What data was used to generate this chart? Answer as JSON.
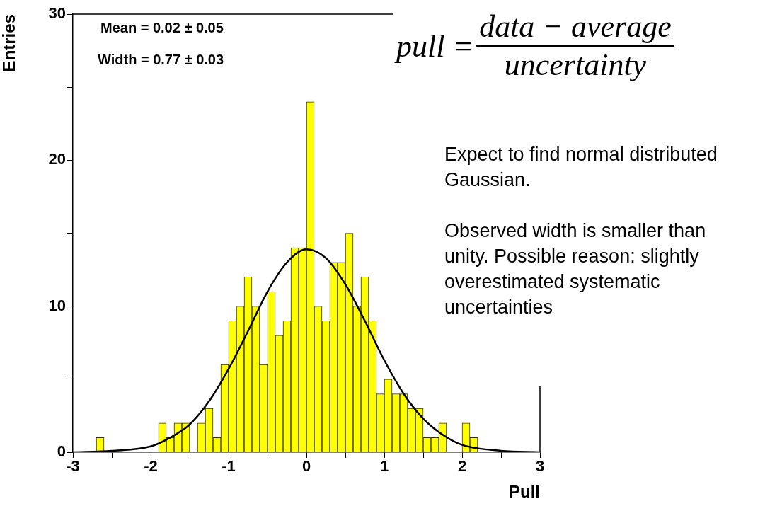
{
  "chart_data": {
    "type": "histogram",
    "xlabel": "Pull",
    "ylabel": "Entries",
    "xlim": [
      -3,
      3
    ],
    "xticks": [
      -3,
      {
        "value": -2.5,
        "label": null
      },
      -2,
      {
        "value": -1.5,
        "label": null
      },
      -1,
      {
        "value": -0.5,
        "label": null
      },
      0,
      {
        "value": 0.5,
        "label": null
      },
      1,
      {
        "value": 1.5,
        "label": null
      },
      2,
      {
        "value": 2.5,
        "label": null
      },
      3
    ],
    "ylim": [
      0,
      30
    ],
    "yticks": [
      0,
      {
        "value": 5,
        "label": null
      },
      10,
      {
        "value": 15,
        "label": null
      },
      20,
      {
        "value": 25,
        "label": null
      },
      30
    ],
    "legend": false,
    "annotations": [
      "Mean = 0.02 ± 0.05",
      "Width = 0.77 ± 0.03",
      "pull =",
      "data − average",
      "uncertainty",
      "Expect to find normal distributed Gaussian.",
      "Observed width is smaller than unity. Possible reason: slightly overestimated systematic uncertainties"
    ],
    "series": [
      {
        "type": "histogram",
        "color": "#ffff00",
        "bins": [
          -3.0,
          -2.9,
          -2.8,
          -2.7,
          -2.6,
          -2.5,
          -2.4,
          -2.3,
          -2.2,
          -2.1,
          -2.0,
          -1.9,
          -1.8,
          -1.7,
          -1.6,
          -1.5,
          -1.4,
          -1.3,
          -1.2,
          -1.1,
          -1.0,
          -0.9,
          -0.8,
          -0.7,
          -0.6,
          -0.5,
          -0.4,
          -0.3,
          -0.2,
          -0.1,
          0.0,
          0.1,
          0.2,
          0.3,
          0.4,
          0.5,
          0.6,
          0.7,
          0.8,
          0.9,
          1.0,
          1.1,
          1.2,
          1.3,
          1.4,
          1.5,
          1.6,
          1.7,
          1.8,
          1.9,
          2.0,
          2.1,
          2.2,
          2.3,
          2.4,
          2.5,
          2.6,
          2.7,
          2.8,
          2.9,
          3.0
        ],
        "values": [
          0,
          0,
          0,
          1,
          0,
          0,
          0,
          0,
          0,
          0,
          0,
          2,
          1,
          2,
          2,
          0,
          2,
          3,
          1,
          6,
          9,
          10,
          12,
          10,
          6,
          11,
          8,
          9,
          14,
          14,
          24,
          10,
          9,
          13,
          13,
          15,
          10,
          12,
          9,
          4,
          5,
          4,
          4,
          3,
          3,
          1,
          1,
          2,
          0,
          0,
          2,
          1,
          0,
          0,
          0,
          0,
          0,
          0,
          0,
          0
        ]
      },
      {
        "type": "line",
        "color": "#000000",
        "marker": "none",
        "x": [
          -3,
          -2.5,
          -2,
          -1.75,
          -1.5,
          -1.25,
          -1,
          -0.75,
          -0.5,
          -0.25,
          0,
          0.25,
          0.5,
          0.75,
          1,
          1.25,
          1.5,
          1.75,
          2,
          2.5,
          3
        ],
        "values": [
          0.0,
          0.1,
          0.4,
          1.0,
          1.9,
          3.5,
          5.7,
          8.3,
          11.0,
          13.0,
          13.9,
          13.3,
          11.5,
          9.0,
          6.3,
          4.0,
          2.3,
          1.2,
          0.5,
          0.1,
          0.0
        ]
      }
    ]
  }
}
